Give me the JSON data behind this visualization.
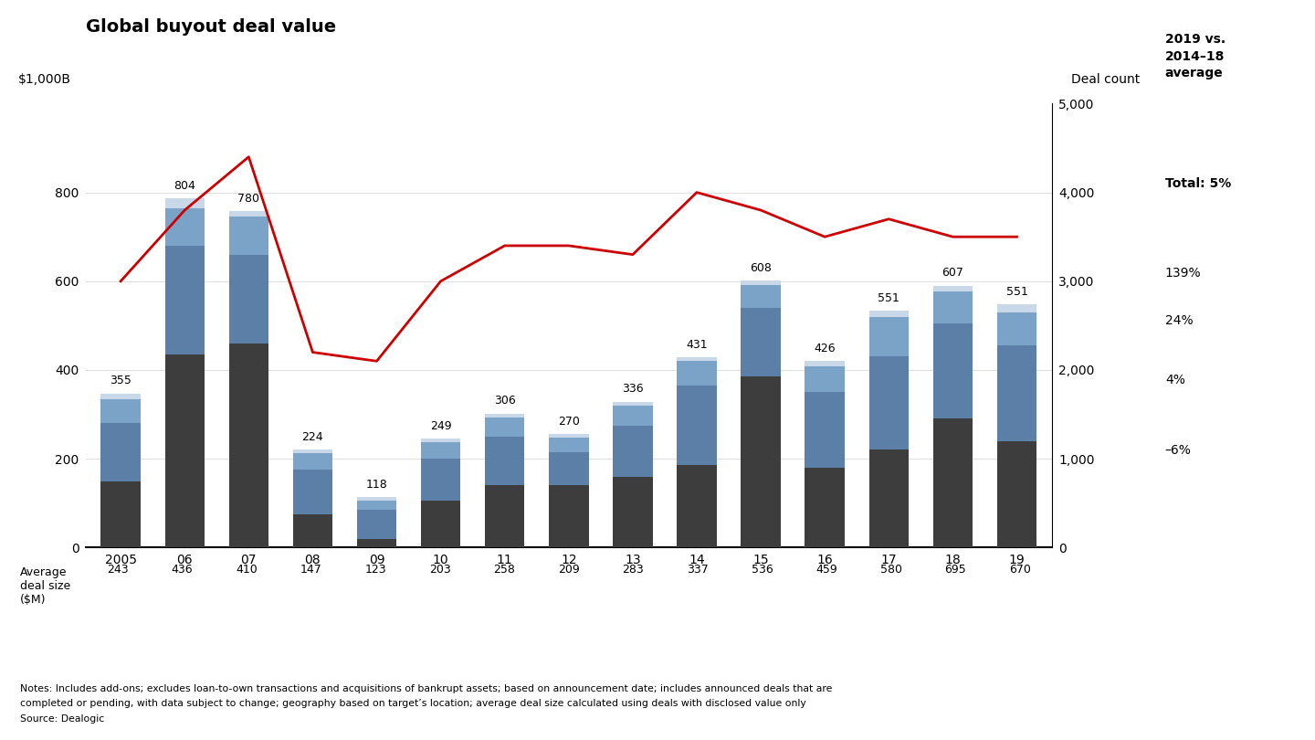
{
  "title": "Global buyout deal value",
  "years": [
    "2005",
    "06",
    "07",
    "08",
    "09",
    "10",
    "11",
    "12",
    "13",
    "14",
    "15",
    "16",
    "17",
    "18",
    "19"
  ],
  "deal_counts_label": [
    355,
    804,
    780,
    224,
    118,
    249,
    306,
    270,
    336,
    431,
    608,
    426,
    551,
    607,
    551
  ],
  "avg_deal_size": [
    243,
    436,
    410,
    147,
    123,
    203,
    258,
    209,
    283,
    337,
    536,
    459,
    580,
    695,
    670
  ],
  "north_america": [
    150,
    435,
    460,
    75,
    20,
    105,
    140,
    140,
    160,
    185,
    385,
    180,
    220,
    290,
    240
  ],
  "europe": [
    130,
    245,
    200,
    100,
    65,
    95,
    110,
    75,
    115,
    180,
    155,
    170,
    210,
    215,
    215
  ],
  "asia_pacific": [
    55,
    85,
    85,
    38,
    20,
    38,
    43,
    32,
    45,
    55,
    52,
    58,
    90,
    72,
    75
  ],
  "rest_of_world": [
    12,
    22,
    12,
    8,
    8,
    8,
    9,
    9,
    9,
    9,
    9,
    13,
    13,
    13,
    18
  ],
  "total_count": [
    3000,
    3800,
    4400,
    2200,
    2100,
    3000,
    3400,
    3400,
    3300,
    4000,
    3800,
    3500,
    3700,
    3500,
    3500
  ],
  "color_north_america": "#3d3d3d",
  "color_europe": "#5b7fa6",
  "color_asia_pacific": "#7ba3c8",
  "color_rest_of_world": "#c8d8e8",
  "color_line": "#cc0000",
  "note_line1": "Notes: Includes add-ons; excludes loan-to-own transactions and acquisitions of bankrupt assets; based on announcement date; includes announced deals that are",
  "note_line2": "completed or pending, with data subject to change; geography based on target’s location; average deal size calculated using deals with disclosed value only",
  "note_line3": "Source: Dealogic"
}
